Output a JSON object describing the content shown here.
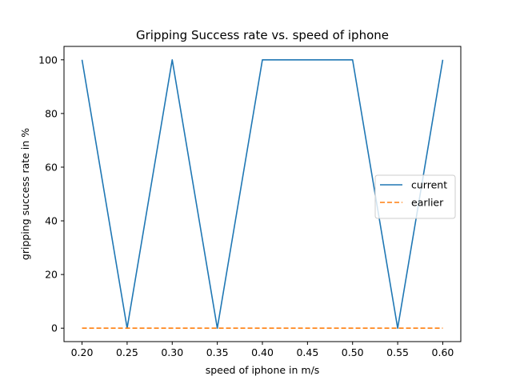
{
  "chart_data": {
    "type": "line",
    "title": "Gripping Success rate vs. speed of iphone",
    "xlabel": "speed of iphone in m/s",
    "ylabel": "gripping success rate in %",
    "x": [
      0.2,
      0.25,
      0.3,
      0.35,
      0.4,
      0.45,
      0.5,
      0.55,
      0.6
    ],
    "xticks": [
      "0.20",
      "0.25",
      "0.30",
      "0.35",
      "0.40",
      "0.45",
      "0.50",
      "0.55",
      "0.60"
    ],
    "yticks": [
      "0",
      "20",
      "40",
      "60",
      "80",
      "100"
    ],
    "xlim": [
      0.18,
      0.62
    ],
    "ylim": [
      -5,
      105
    ],
    "grid": false,
    "legend_position": "center-right",
    "series": [
      {
        "name": "current",
        "values": [
          100,
          0,
          100,
          0,
          100,
          100,
          100,
          0,
          100
        ],
        "color": "#1f77b4",
        "style": "solid"
      },
      {
        "name": "earlier",
        "values": [
          0,
          0,
          0,
          0,
          0,
          0,
          0,
          0,
          0
        ],
        "color": "#ff7f0e",
        "style": "dashed"
      }
    ]
  }
}
